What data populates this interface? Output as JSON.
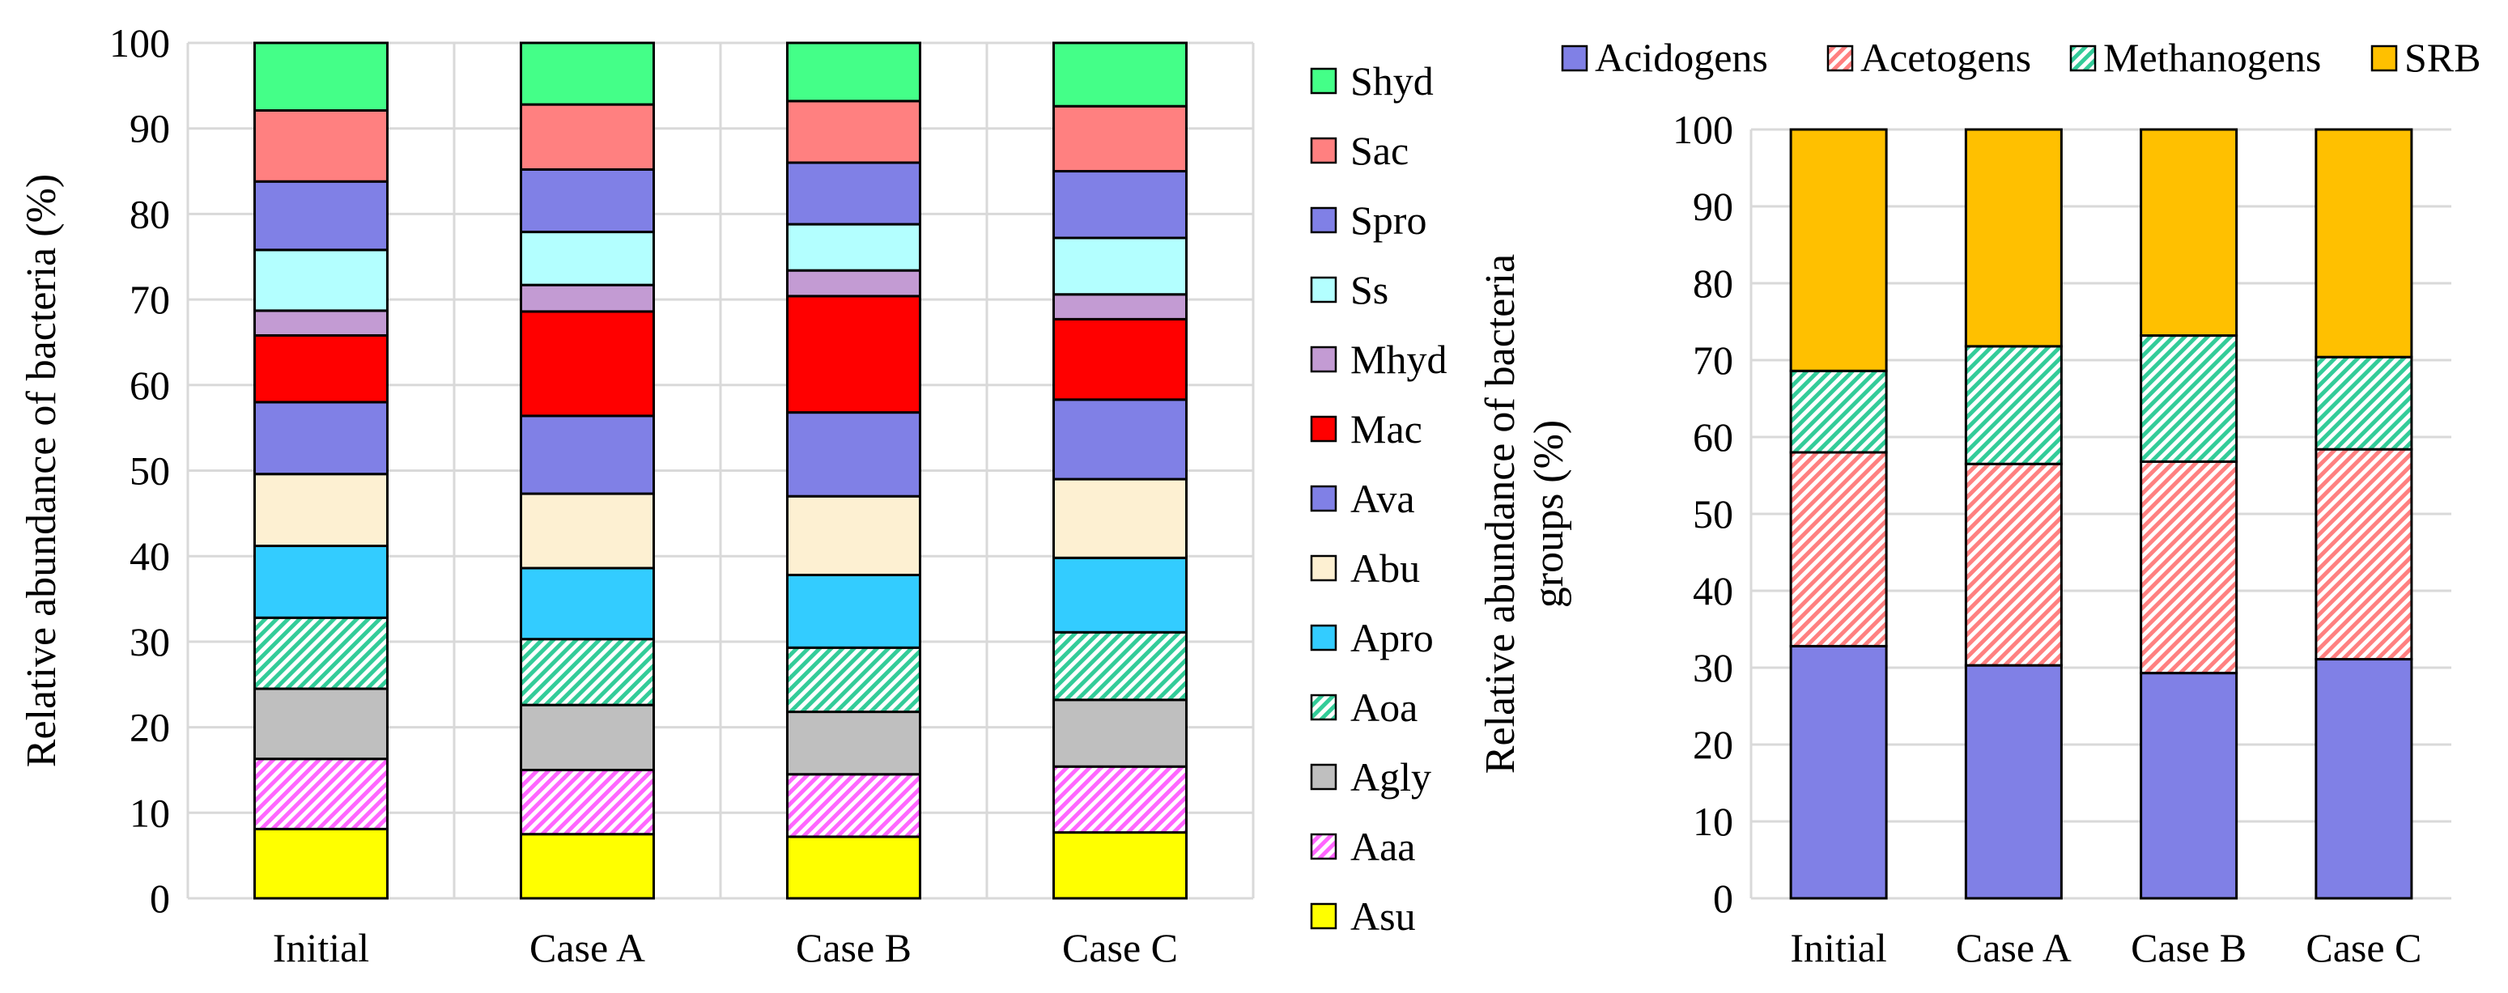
{
  "chart_data": [
    {
      "type": "bar",
      "stacked": true,
      "ylabel": "Relative abundance of bacteria (%)",
      "xlabel": "",
      "ylim": [
        0,
        100
      ],
      "yticks": [
        0,
        10,
        20,
        30,
        40,
        50,
        60,
        70,
        80,
        90,
        100
      ],
      "grid": true,
      "legend": "right",
      "categories": [
        "Initial",
        "Case A",
        "Case B",
        "Case C"
      ],
      "series": [
        {
          "name": "Asu",
          "color": "#ffff00",
          "pattern": "solid",
          "values": [
            8.1,
            7.5,
            7.2,
            7.7
          ]
        },
        {
          "name": "Aaa",
          "color": "#ff66ff",
          "pattern": "hatch",
          "values": [
            8.2,
            7.5,
            7.3,
            7.7
          ]
        },
        {
          "name": "Agly",
          "color": "#bfbfbf",
          "pattern": "solid",
          "values": [
            8.2,
            7.6,
            7.3,
            7.8
          ]
        },
        {
          "name": "Aoa",
          "color": "#33cc99",
          "pattern": "hatch",
          "values": [
            8.3,
            7.7,
            7.5,
            7.9
          ]
        },
        {
          "name": "Apro",
          "color": "#33ccff",
          "pattern": "solid",
          "values": [
            8.4,
            8.3,
            8.5,
            8.7
          ]
        },
        {
          "name": "Abu",
          "color": "#fdf0d2",
          "pattern": "solid",
          "values": [
            8.4,
            8.7,
            9.2,
            9.2
          ]
        },
        {
          "name": "Ava",
          "color": "#8080e6",
          "pattern": "solid",
          "values": [
            8.4,
            9.1,
            9.8,
            9.3
          ]
        },
        {
          "name": "Mac",
          "color": "#ff0000",
          "pattern": "solid",
          "values": [
            7.8,
            12.2,
            13.6,
            9.4
          ]
        },
        {
          "name": "Mhyd",
          "color": "#c39bd3",
          "pattern": "solid",
          "values": [
            2.9,
            3.1,
            3.0,
            2.9
          ]
        },
        {
          "name": "Ss",
          "color": "#b3ffff",
          "pattern": "solid",
          "values": [
            7.1,
            6.2,
            5.4,
            6.6
          ]
        },
        {
          "name": "Spro",
          "color": "#8080e6",
          "pattern": "solid",
          "values": [
            8.0,
            7.3,
            7.2,
            7.8
          ]
        },
        {
          "name": "Sac",
          "color": "#ff8080",
          "pattern": "solid",
          "values": [
            8.3,
            7.6,
            7.2,
            7.6
          ]
        },
        {
          "name": "Shyd",
          "color": "#44ff88",
          "pattern": "solid",
          "values": [
            7.9,
            7.2,
            6.8,
            7.4
          ]
        }
      ]
    },
    {
      "type": "bar",
      "stacked": true,
      "ylabel": "Relative abundance of bacteria groups (%)",
      "xlabel": "",
      "ylim": [
        0,
        100
      ],
      "yticks": [
        0,
        10,
        20,
        30,
        40,
        50,
        60,
        70,
        80,
        90,
        100
      ],
      "grid": true,
      "legend": "top",
      "categories": [
        "Initial",
        "Case A",
        "Case B",
        "Case C"
      ],
      "series": [
        {
          "name": "Acidogens",
          "color": "#8080e6",
          "pattern": "solid",
          "values": [
            32.8,
            30.3,
            29.3,
            31.1
          ]
        },
        {
          "name": "Acetogens",
          "color": "#ff8080",
          "pattern": "hatch",
          "values": [
            25.2,
            26.2,
            27.5,
            27.3
          ]
        },
        {
          "name": "Methanogens",
          "color": "#33cc99",
          "pattern": "hatch",
          "values": [
            10.6,
            15.3,
            16.4,
            12.0
          ]
        },
        {
          "name": "SRB",
          "color": "#ffc000",
          "pattern": "solid",
          "values": [
            31.4,
            28.2,
            26.8,
            29.6
          ]
        }
      ]
    }
  ]
}
